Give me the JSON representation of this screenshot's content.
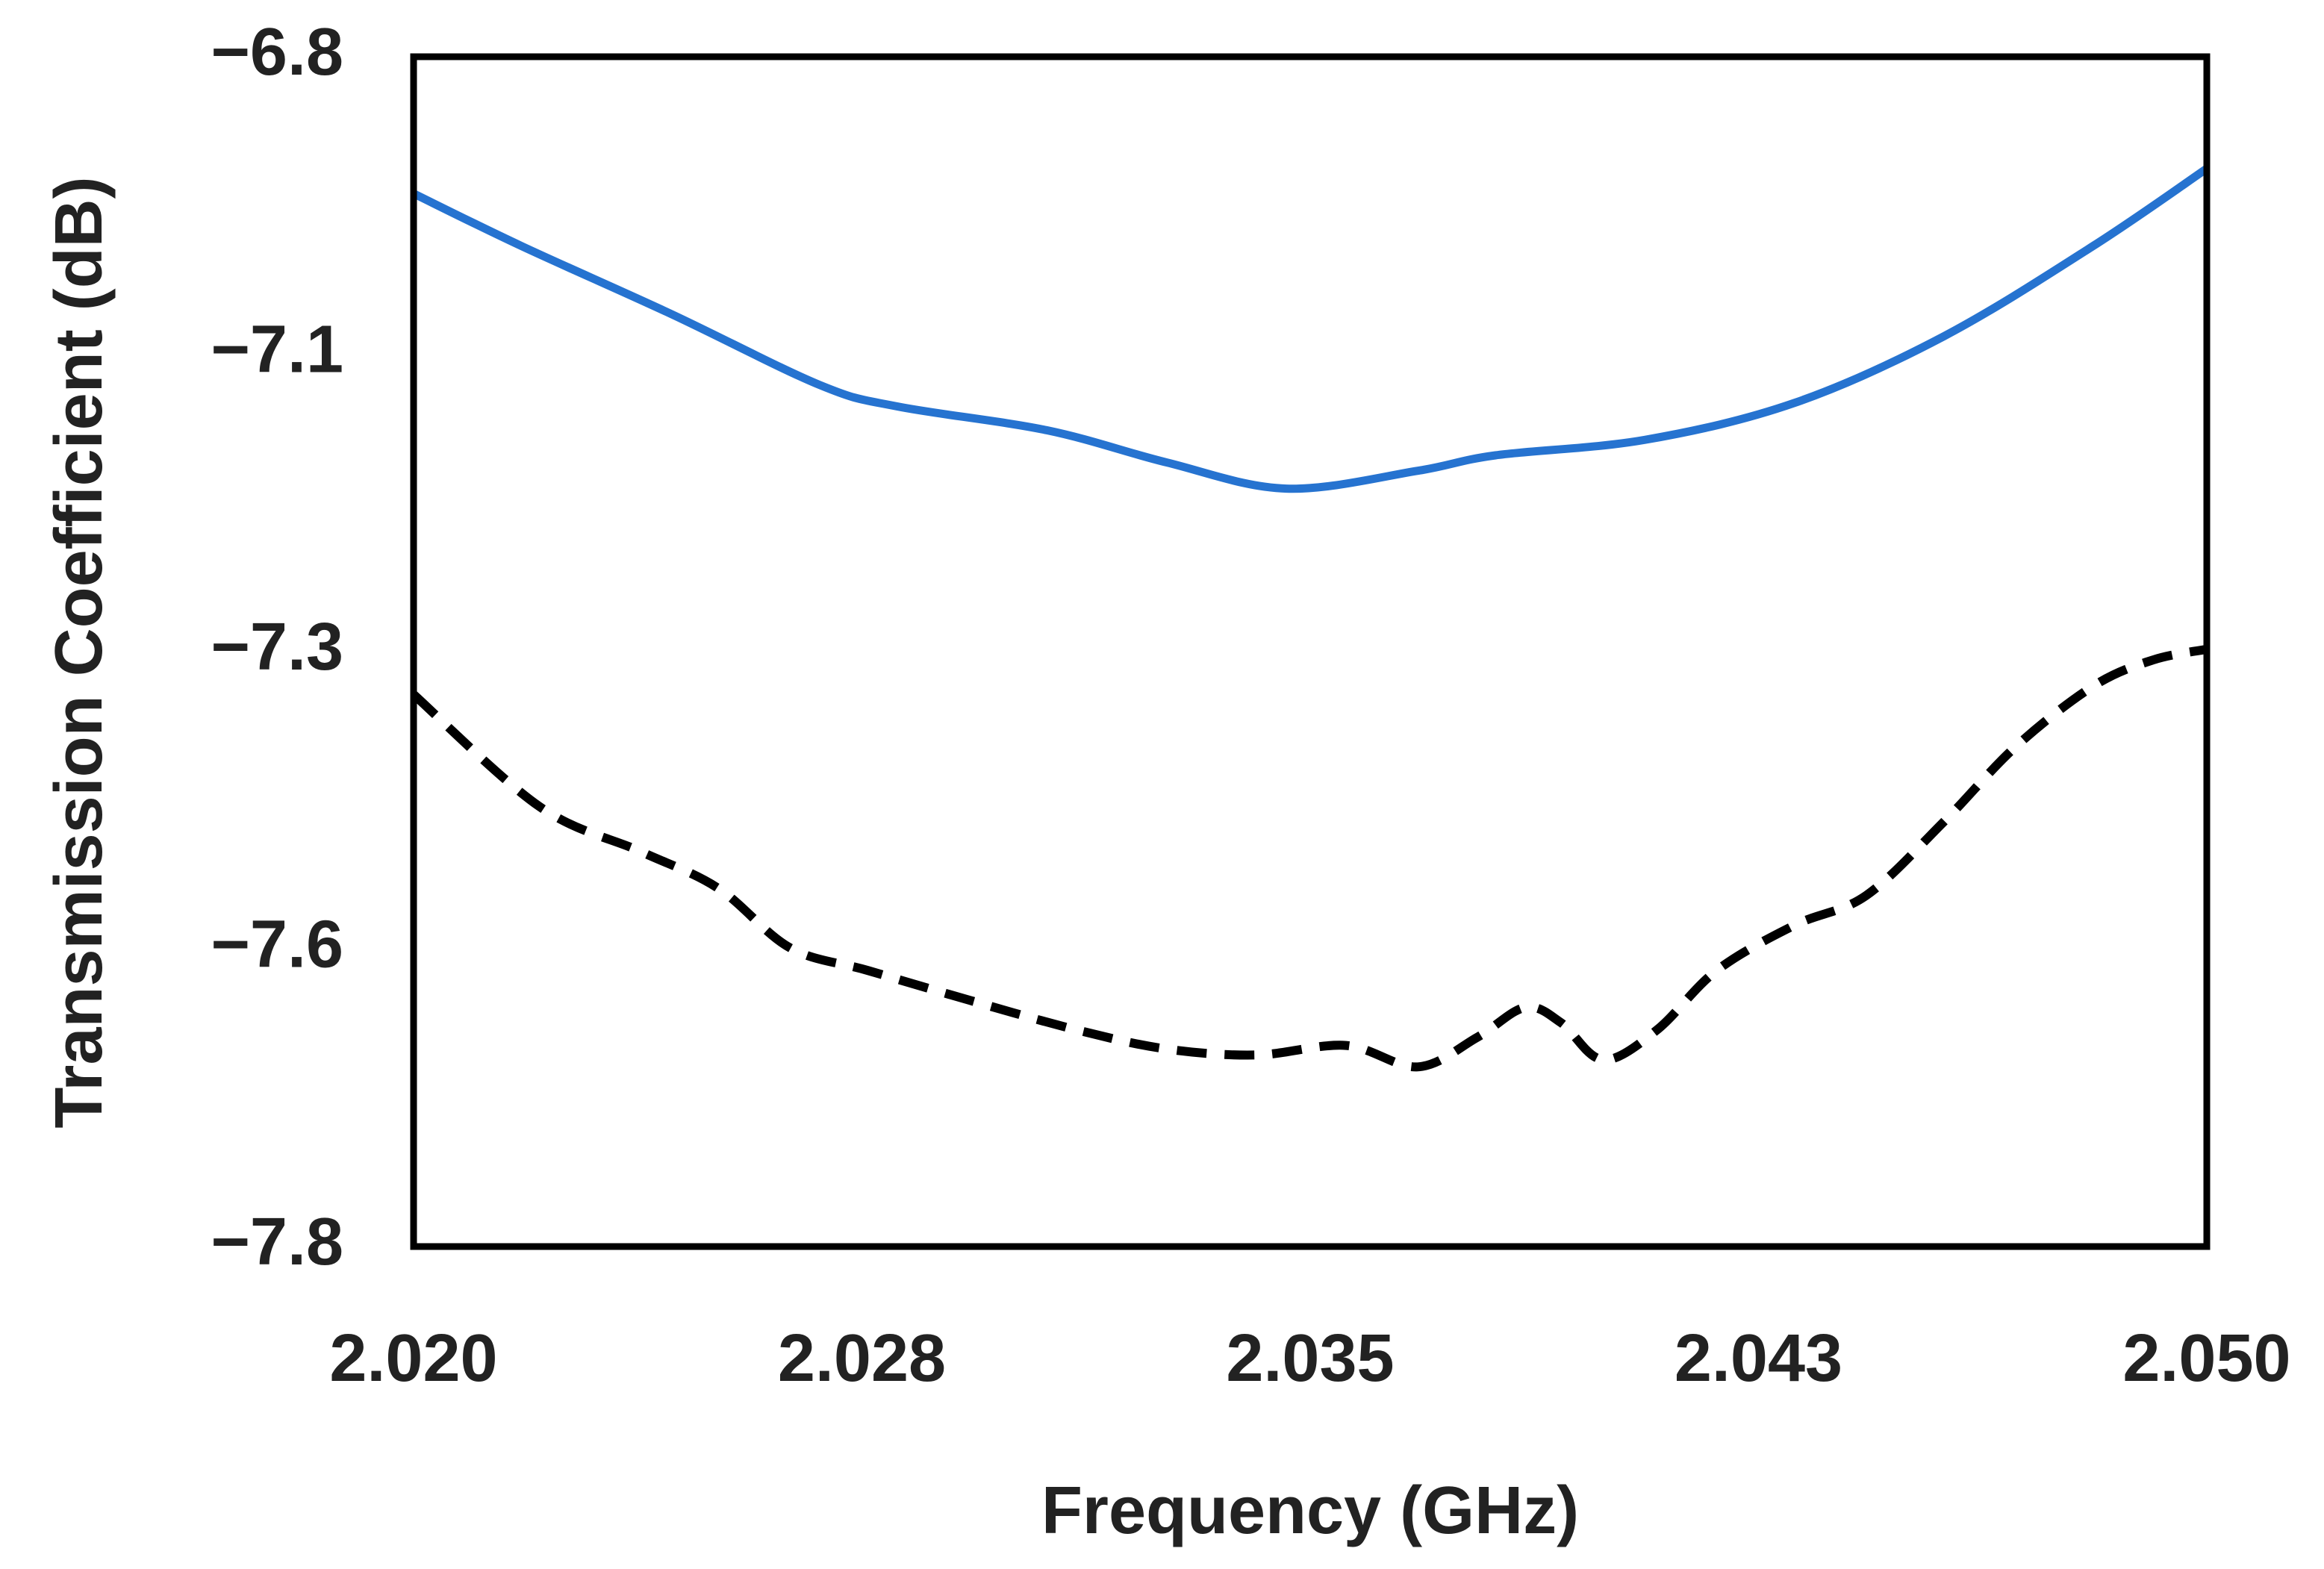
{
  "chart_data": {
    "type": "line",
    "x_label": "Frequency (GHz)",
    "y_label": "Transmission Coefficient (dB)",
    "xlim": [
      2.02,
      2.05
    ],
    "xticks": [
      {
        "value": 2.02,
        "label": "2.020"
      },
      {
        "value": 2.0275,
        "label": "2.028"
      },
      {
        "value": 2.035,
        "label": "2.035"
      },
      {
        "value": 2.0425,
        "label": "2.043"
      },
      {
        "value": 2.05,
        "label": "2.050"
      }
    ],
    "ylim": [
      -7.8,
      -6.8
    ],
    "yticks": [
      {
        "value": -7.8,
        "label": "−7.8"
      },
      {
        "value": -7.55,
        "label": "−7.6"
      },
      {
        "value": -7.3,
        "label": "−7.3"
      },
      {
        "value": -7.05,
        "label": "−7.1"
      },
      {
        "value": -6.8,
        "label": "−6.8"
      }
    ],
    "grid": false,
    "series": [
      {
        "color": "#2673d0",
        "line_style": "solid",
        "x": [
          2.02,
          2.0218,
          2.0243,
          2.0268,
          2.0281,
          2.0306,
          2.0326,
          2.0346,
          2.0368,
          2.0381,
          2.0406,
          2.0431,
          2.0456,
          2.0481,
          2.05
        ],
        "values": [
          -6.915,
          -6.959,
          -7.016,
          -7.076,
          -7.094,
          -7.114,
          -7.141,
          -7.163,
          -7.148,
          -7.135,
          -7.122,
          -7.091,
          -7.035,
          -6.959,
          -6.894
        ]
      },
      {
        "color": "#000000",
        "line_style": "dashed",
        "x": [
          2.02,
          2.0221,
          2.0238,
          2.0251,
          2.0263,
          2.0276,
          2.0293,
          2.0311,
          2.0326,
          2.0341,
          2.0356,
          2.0368,
          2.0378,
          2.0386,
          2.0392,
          2.0399,
          2.0408,
          2.0418,
          2.0431,
          2.0443,
          2.0456,
          2.0468,
          2.0481,
          2.0491,
          2.05
        ],
        "values": [
          -7.336,
          -7.43,
          -7.468,
          -7.499,
          -7.549,
          -7.568,
          -7.593,
          -7.618,
          -7.634,
          -7.639,
          -7.631,
          -7.649,
          -7.624,
          -7.599,
          -7.612,
          -7.643,
          -7.618,
          -7.568,
          -7.53,
          -7.505,
          -7.443,
          -7.38,
          -7.329,
          -7.307,
          -7.298
        ]
      }
    ]
  }
}
